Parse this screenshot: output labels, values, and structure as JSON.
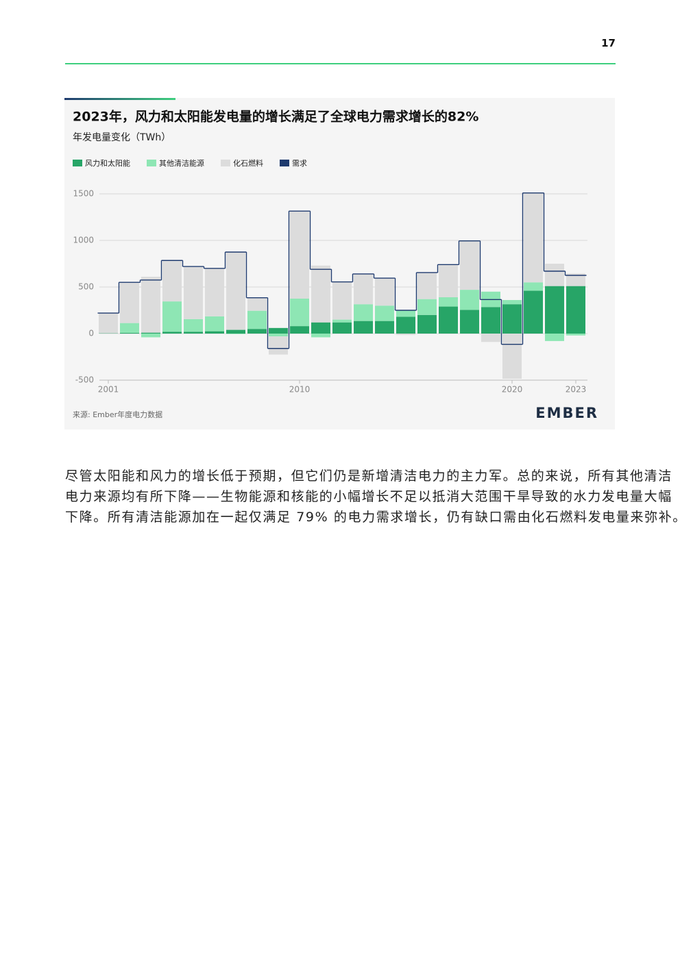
{
  "page_number": "17",
  "paragraph": {
    "lines": [
      "尽管太阳能和风力的增长低于预期，但它们仍是新增清洁电力的主力军。总的来说，所有其他清洁",
      "电力来源均有所下降——生物能源和核能的小幅增长不足以抵消大范围干旱导致的水力发电量大幅",
      "下降。所有清洁能源加在一起仅满足 79% 的电力需求增长，仍有缺口需由化石燃料发电量来弥补。"
    ]
  },
  "chart_data": {
    "type": "bar",
    "title": "2023年，风力和太阳能发电量的增长满足了全球电力需求增长的82%",
    "subtitle": "年发电量变化（TWh）",
    "source": "来源: Ember年度电力数据",
    "logo": "EMBER",
    "stacked": true,
    "legend": "top-left",
    "grid": true,
    "categories": [
      "2001",
      null,
      null,
      null,
      null,
      null,
      null,
      null,
      null,
      "2010",
      null,
      null,
      null,
      null,
      null,
      null,
      null,
      null,
      null,
      "2020",
      null,
      null,
      "2023"
    ],
    "series": [
      {
        "name": "风力和太阳能",
        "color": "#27a567",
        "values": [
          3,
          8,
          10,
          20,
          20,
          25,
          40,
          50,
          60,
          80,
          120,
          120,
          135,
          135,
          180,
          200,
          290,
          255,
          285,
          315,
          460,
          510,
          510
        ]
      },
      {
        "name": "其他清洁能源",
        "color": "#8ee6b4",
        "values": [
          0,
          105,
          -40,
          325,
          135,
          160,
          -5,
          195,
          -30,
          295,
          -40,
          30,
          180,
          165,
          70,
          170,
          100,
          215,
          165,
          45,
          90,
          -80,
          -20
        ]
      },
      {
        "name": "化石燃料",
        "color": "#dcdcdc",
        "values": [
          215,
          437,
          600,
          440,
          560,
          515,
          835,
          140,
          -195,
          940,
          610,
          410,
          325,
          295,
          -15,
          285,
          350,
          525,
          -90,
          -485,
          960,
          240,
          135
        ]
      },
      {
        "name": "需求",
        "color": "#1e3a6e",
        "kind": "step",
        "values": [
          220,
          550,
          575,
          785,
          720,
          700,
          875,
          385,
          -160,
          1315,
          690,
          555,
          640,
          595,
          250,
          655,
          740,
          995,
          365,
          -115,
          1510,
          670,
          625
        ]
      }
    ],
    "ylim": [
      -500,
      1500
    ],
    "yticks": [
      -500,
      0,
      500,
      1000,
      1500
    ]
  }
}
